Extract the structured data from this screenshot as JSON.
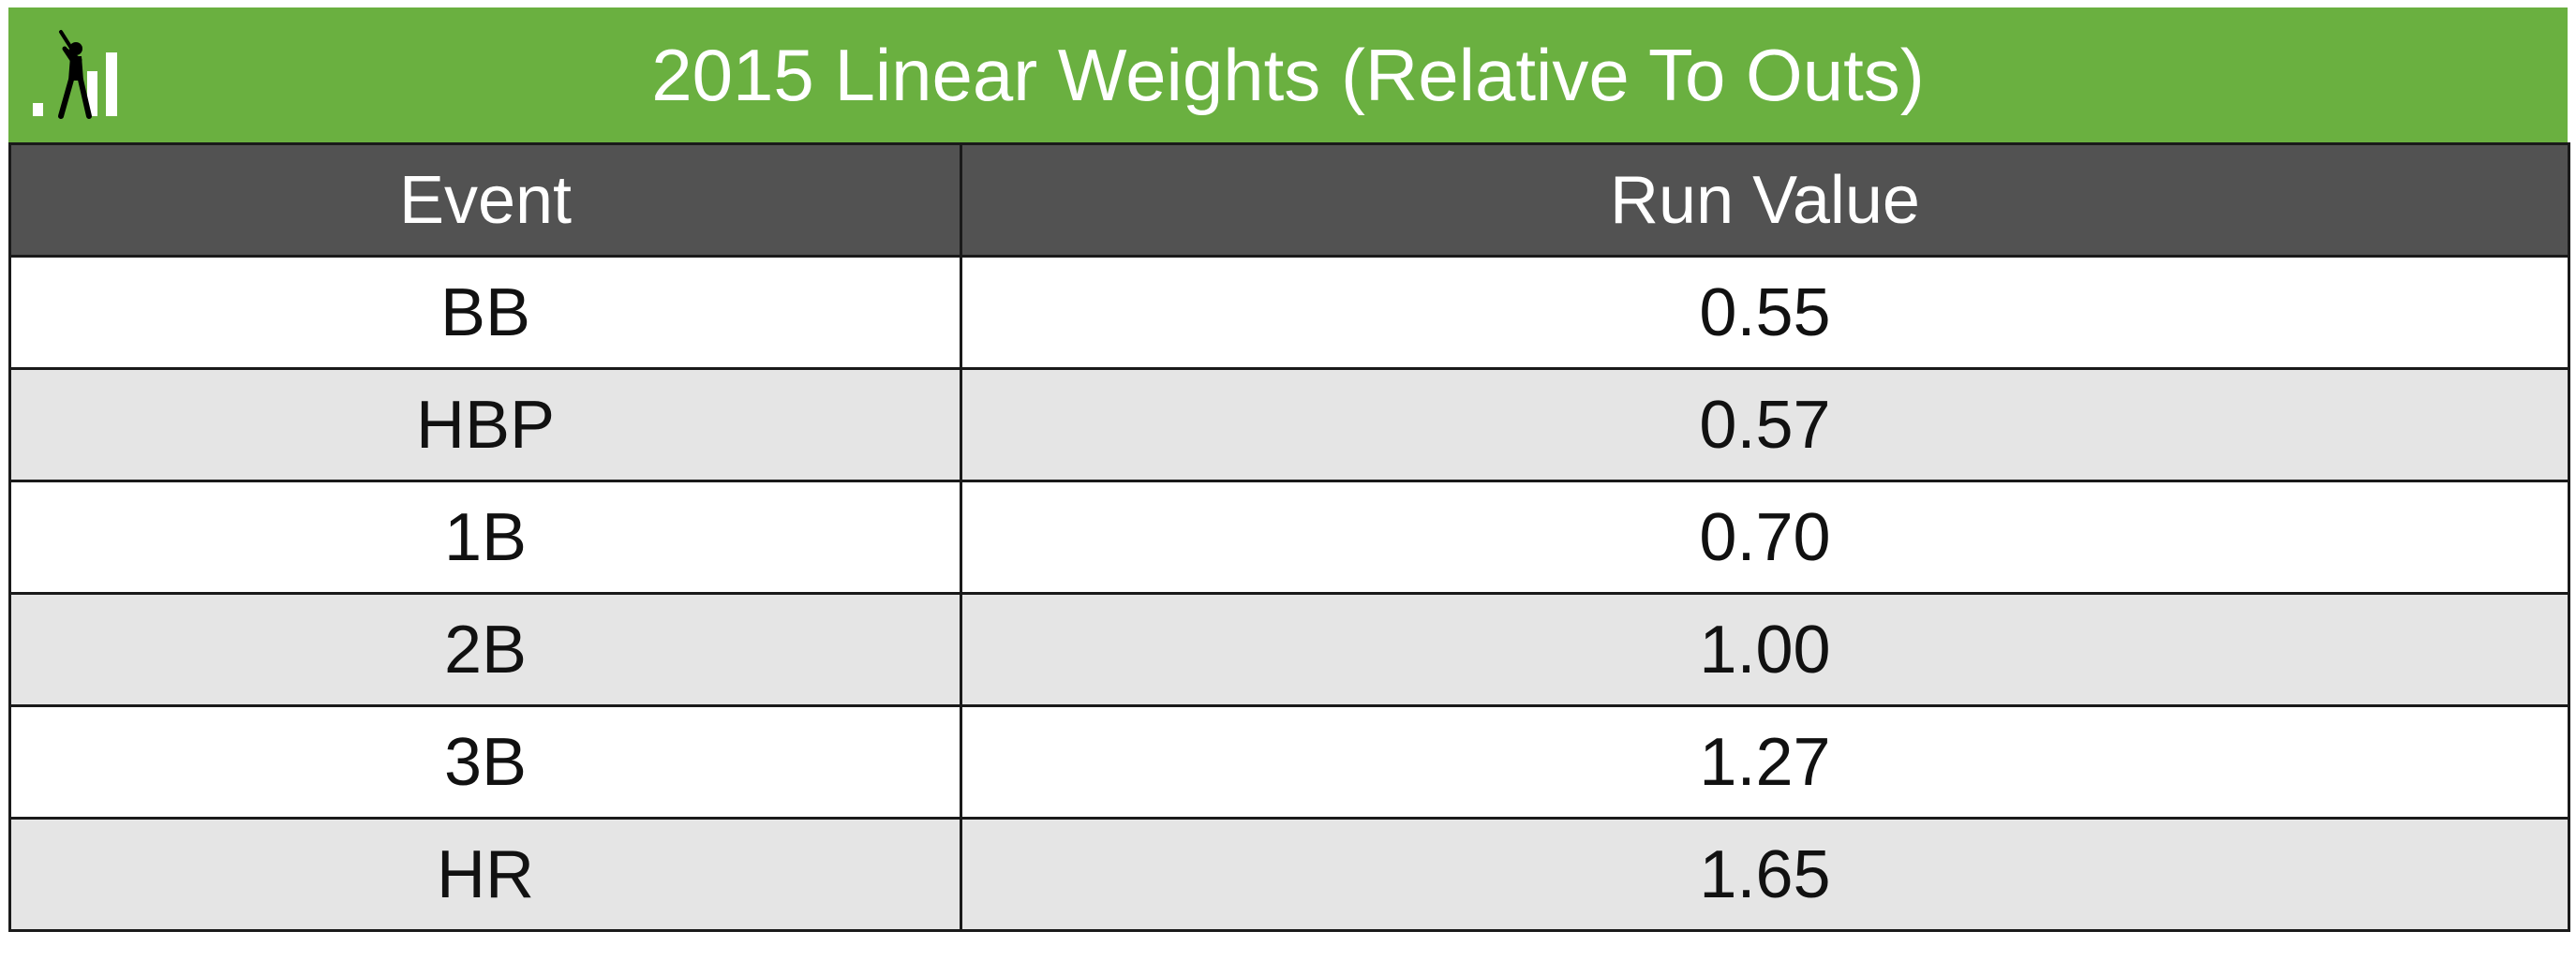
{
  "colors": {
    "title_bar": "#6ab040",
    "header_bg": "#525252",
    "row_alt": "#e5e5e5",
    "row_plain": "#ffffff",
    "grid": "#1a1a1a"
  },
  "logo": {
    "icon": "batter-bar-chart-icon"
  },
  "chart_data": {
    "type": "table",
    "title": "2015 Linear Weights (Relative To Outs)",
    "columns": [
      "Event",
      "Run Value"
    ],
    "rows": [
      {
        "event": "BB",
        "value": "0.55"
      },
      {
        "event": "HBP",
        "value": "0.57"
      },
      {
        "event": "1B",
        "value": "0.70"
      },
      {
        "event": "2B",
        "value": "1.00"
      },
      {
        "event": "3B",
        "value": "1.27"
      },
      {
        "event": "HR",
        "value": "1.65"
      }
    ]
  }
}
